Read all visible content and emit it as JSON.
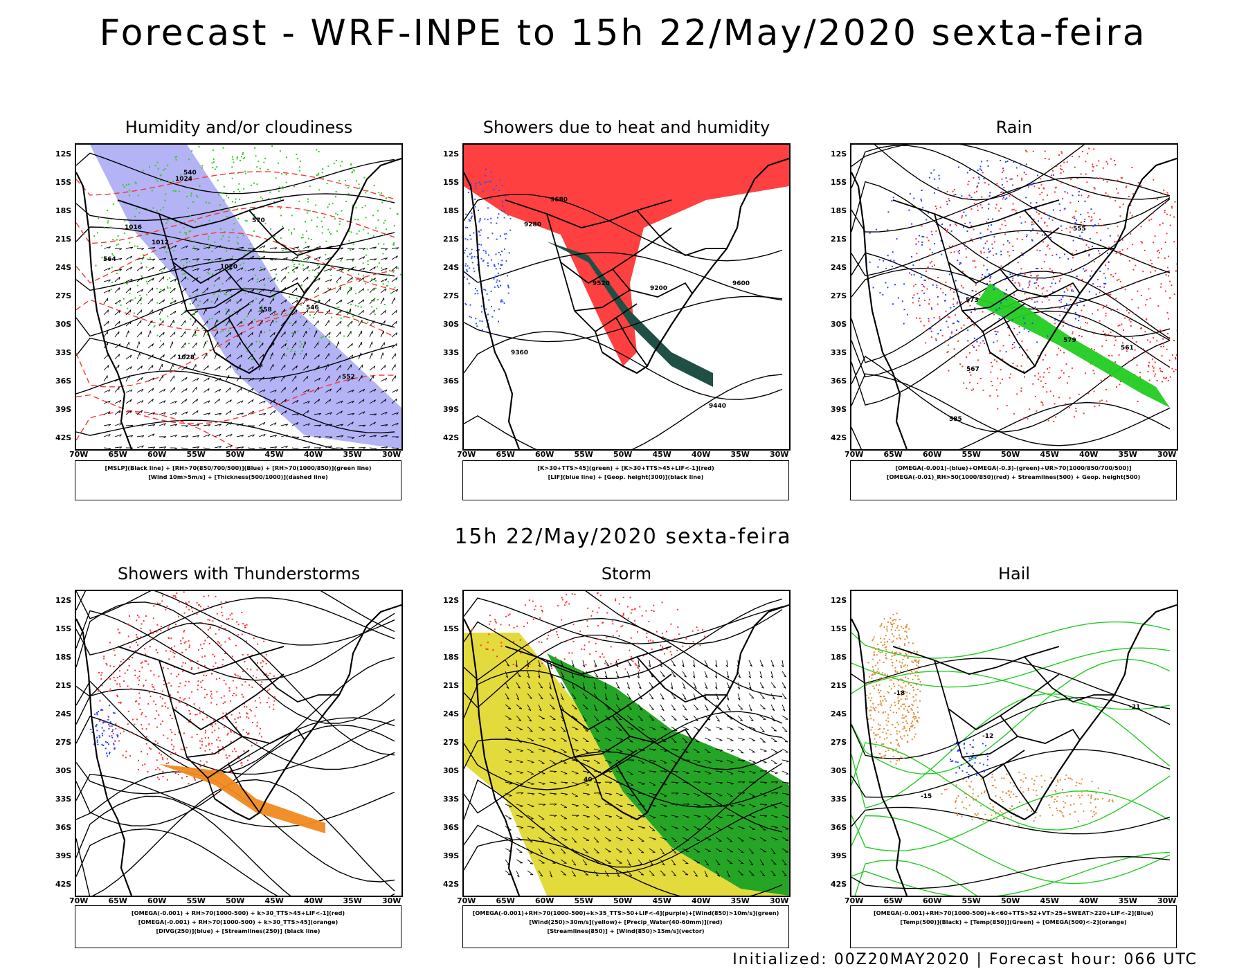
{
  "title": "Forecast - WRF-INPE to 15h 22/May/2020 sexta-feira",
  "subtitle": "15h 22/May/2020 sexta-feira",
  "footer": "Initialized: 00Z20MAY2020 | Forecast hour: 066 UTC",
  "axes": {
    "lat_labels": [
      "12S",
      "15S",
      "18S",
      "21S",
      "24S",
      "27S",
      "30S",
      "33S",
      "36S",
      "39S",
      "42S"
    ],
    "lon_labels": [
      "70W",
      "65W",
      "60W",
      "55W",
      "50W",
      "45W",
      "40W",
      "35W",
      "30W"
    ]
  },
  "panels": [
    {
      "title": "Humidity and/or cloudiness",
      "legend": [
        "[MSLP](Black line) + [RH>70(850/700/500)](Blue) + [RH>70(1000/850)](green line)",
        "[Wind 10m>5m/s] + [Thickness(500/1000)](dashed line)"
      ],
      "labels": [
        "1012",
        "1016",
        "1020",
        "1024",
        "1028",
        "570",
        "564",
        "558",
        "552",
        "546",
        "540"
      ],
      "colors": {
        "fill": "#9a9af2",
        "green": "#2ecc1e",
        "red": "#ff3030"
      }
    },
    {
      "title": "Showers due to heat and humidity",
      "legend": [
        "[K>30+TTS>45](green) + [K>30+TTS>45+LIF<-1](red)",
        "[LIF](blue line) + [Geop. height(300)](black line)"
      ],
      "labels": [
        "9680",
        "9600",
        "9520",
        "9440",
        "9360",
        "9280",
        "9200"
      ],
      "colors": {
        "fill": "#ff4040",
        "green": "#1f4f45",
        "blue": "#3050ff"
      }
    },
    {
      "title": "Rain",
      "legend": [
        "[OMEGA(-0.001)-(blue)+OMEGA(-0.3)-(green)+UR>70(1000/850/700/500)]",
        "[OMEGA(-0.01)_RH>50(1000/850)(red) + Streamlines(500) + Geop. height(500)"
      ],
      "labels": [
        "585",
        "579",
        "573",
        "567",
        "561",
        "555"
      ],
      "colors": {
        "red": "#ff3030",
        "green": "#22cc22",
        "blue": "#2040ff"
      }
    },
    {
      "title": "Showers with Thunderstorms",
      "legend": [
        "[OMEGA(-0.001) + RH>70(1000-500) + k>30_TTS>45+LIF<-1](red)",
        "[OMEGA(-0.001) + RH>70(1000-500) + k>30_TTS>45](orange)",
        "[DIVG(250)](blue) + [Streamlines(250)] (black line)"
      ],
      "labels": [],
      "colors": {
        "red": "#ff3030",
        "orange": "#f08a20",
        "blue": "#2040ff"
      }
    },
    {
      "title": "Storm",
      "legend": [
        "[OMEGA(-0.001)+RH>70(1000-500)+k>35_TTS>50+LIF<-4](purple)+[Wind(850)>10m/s](green)",
        "[Wind(250)>30m/s](yellow)+ [Precip_Water(40-60mm)](red)",
        "[Streamlines(850)] + [Wind(850)>15m/s](vector)"
      ],
      "labels": [
        "40"
      ],
      "colors": {
        "yellow": "#e2d832",
        "green": "#19a019",
        "red": "#ff3030"
      }
    },
    {
      "title": "Hail",
      "legend": [
        "[OMEGA(-0.001)+RH>70(1000-500)+k<60+TTS>52+VT>25+SWEAT>220+LIF<-2](Blue)",
        "[Temp(500)](Black) + [Temp(850)](Green) + [OMEGA(500)<-2](orange)"
      ],
      "labels": [
        "-12",
        "-18",
        "-15",
        "-21"
      ],
      "colors": {
        "green": "#22cc22",
        "orange": "#e08a30",
        "blue": "#2040ff"
      }
    }
  ]
}
